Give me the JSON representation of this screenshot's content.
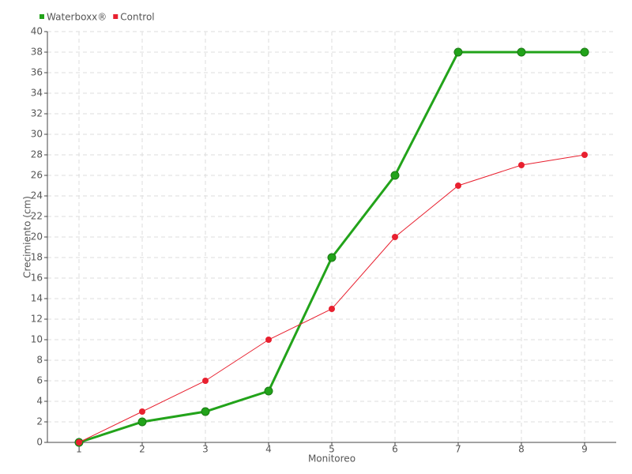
{
  "chart_data": {
    "type": "line",
    "x_label": "Monitoreo",
    "y_label": "Crecimiento (cm)",
    "x": [
      1,
      2,
      3,
      4,
      5,
      6,
      7,
      8,
      9
    ],
    "xlim": [
      0.5,
      9.5
    ],
    "xticks": [
      1,
      2,
      3,
      4,
      5,
      6,
      7,
      8,
      9
    ],
    "ylim": [
      0,
      40
    ],
    "yticks": [
      0,
      2,
      4,
      6,
      8,
      10,
      12,
      14,
      16,
      18,
      20,
      22,
      24,
      26,
      28,
      30,
      32,
      34,
      36,
      38,
      40
    ],
    "grid": true,
    "legend": "top-left",
    "series": [
      {
        "name": "Waterboxx®",
        "color": "#22a31a",
        "values": [
          0,
          2,
          3,
          5,
          18,
          26,
          38,
          38,
          38
        ]
      },
      {
        "name": "Control",
        "color": "#e8202f",
        "values": [
          0,
          3,
          6,
          10,
          13,
          20,
          25,
          27,
          28
        ]
      }
    ]
  }
}
